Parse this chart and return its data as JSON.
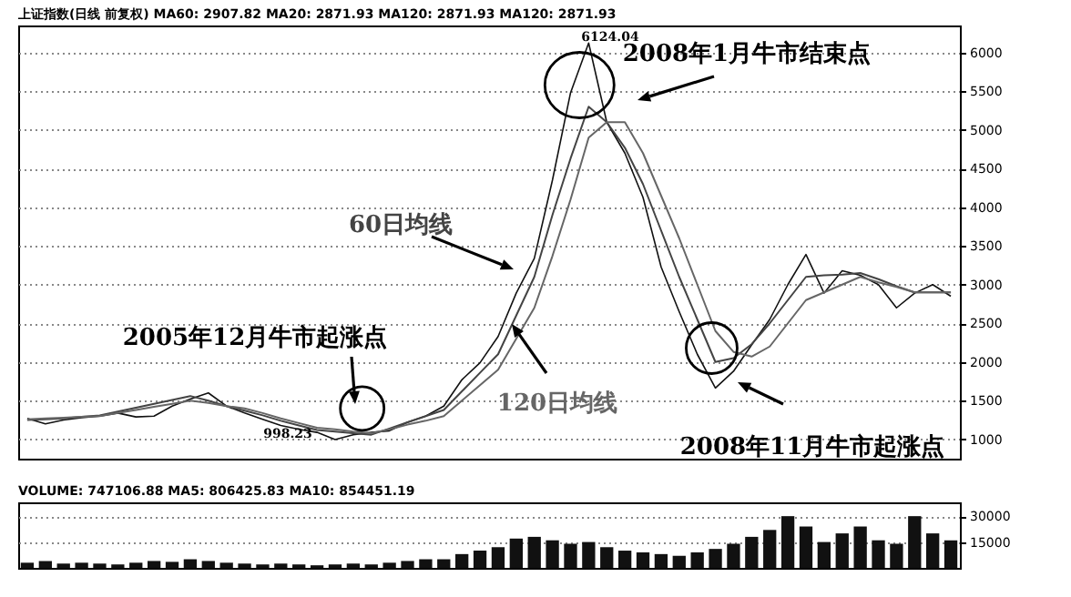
{
  "chart_data": [
    {
      "type": "line",
      "title": "上证指数(日线 前复权) MA60: 2907.82 MA20: 2871.93 MA120: 2871.93 MA120: 2871.93",
      "categories": [
        null,
        null,
        null,
        null,
        null,
        null,
        null,
        null,
        null,
        null,
        null,
        null,
        null,
        null,
        null,
        null,
        null,
        null,
        null,
        null,
        null,
        null,
        null,
        null,
        null,
        null,
        null,
        null,
        null,
        null,
        null,
        null,
        null,
        null,
        null,
        null,
        null,
        null,
        null,
        null,
        null,
        null,
        null,
        null,
        null,
        null,
        null,
        null,
        null,
        null,
        null,
        null
      ],
      "series": [
        {
          "color": "#111111",
          "values": [
            1270,
            1200,
            1250,
            1280,
            1300,
            1340,
            1290,
            1300,
            1430,
            1520,
            1600,
            1430,
            1340,
            1260,
            1180,
            1130,
            1090,
            998.23,
            1060,
            1090,
            1110,
            1220,
            1300,
            1430,
            1770,
            1990,
            2330,
            2890,
            3340,
            4350,
            5480,
            6124.04,
            5100,
            4700,
            4130,
            3230,
            2650,
            2100,
            1664,
            1880,
            2220,
            2550,
            3000,
            3390,
            2890,
            3180,
            3120,
            3000,
            2700,
            2890,
            3000,
            2850
          ]
        },
        {
          "name": "60日均线",
          "color": "#444444",
          "values": [
            1250,
            1260,
            1270,
            1290,
            1310,
            1360,
            1410,
            1460,
            1510,
            1560,
            1500,
            1430,
            1370,
            1310,
            1240,
            1180,
            1120,
            1100,
            1080,
            1060,
            1140,
            1220,
            1300,
            1380,
            1620,
            1860,
            2100,
            2600,
            3100,
            3900,
            4630,
            5300,
            5100,
            4770,
            4300,
            3700,
            3100,
            2550,
            2000,
            2050,
            2230,
            2500,
            2800,
            3100,
            3120,
            3130,
            3150,
            3070,
            2980,
            2900,
            2900,
            2900
          ]
        },
        {
          "name": "120日均线",
          "color": "#666666",
          "values": [
            1260,
            1270,
            1280,
            1290,
            1300,
            1340,
            1380,
            1420,
            1460,
            1500,
            1470,
            1430,
            1400,
            1340,
            1270,
            1210,
            1150,
            1130,
            1100,
            1080,
            1130,
            1190,
            1240,
            1300,
            1500,
            1700,
            1900,
            2300,
            2700,
            3370,
            4100,
            4900,
            5100,
            5100,
            4700,
            4150,
            3600,
            3000,
            2400,
            2130,
            2070,
            2200,
            2500,
            2800,
            2900,
            3000,
            3100,
            3030,
            2970,
            2900,
            2900,
            2900
          ]
        }
      ],
      "ylim": [
        750,
        6350
      ],
      "yticks": [
        1000,
        1500,
        2000,
        2500,
        3000,
        3500,
        4000,
        4500,
        5000,
        5500,
        6000
      ],
      "grid": "y",
      "tick_labels": "y",
      "annotations": [
        "6124.04",
        "998.23",
        "2008年1月牛市结束点",
        "2005年12月牛市起涨点",
        "2008年11月牛市起涨点"
      ]
    },
    {
      "type": "bar",
      "title": "VOLUME: 747106.88 MA5: 806425.83 MA10: 854451.19",
      "categories": [
        null,
        null,
        null,
        null,
        null,
        null,
        null,
        null,
        null,
        null,
        null,
        null,
        null,
        null,
        null,
        null,
        null,
        null,
        null,
        null,
        null,
        null,
        null,
        null,
        null,
        null,
        null,
        null,
        null,
        null,
        null,
        null,
        null,
        null,
        null,
        null,
        null,
        null,
        null,
        null,
        null,
        null,
        null,
        null,
        null,
        null,
        null,
        null,
        null,
        null,
        null,
        null
      ],
      "values": [
        3000,
        4000,
        2500,
        3000,
        2500,
        2000,
        3000,
        4000,
        3500,
        5000,
        4000,
        3000,
        2500,
        2000,
        2500,
        2000,
        1500,
        2000,
        2500,
        2000,
        3000,
        4000,
        5000,
        5000,
        8000,
        10000,
        12000,
        17000,
        18000,
        16000,
        14000,
        15000,
        12000,
        10000,
        9000,
        8000,
        7000,
        9000,
        11000,
        14000,
        18000,
        22000,
        30000,
        24000,
        15000,
        20000,
        24000,
        16000,
        14000,
        30000,
        20000,
        16000
      ],
      "color": "#111111",
      "ylim": [
        0,
        38000
      ],
      "yticks": [
        15000,
        30000
      ],
      "grid": "y",
      "tick_labels": "y"
    }
  ]
}
